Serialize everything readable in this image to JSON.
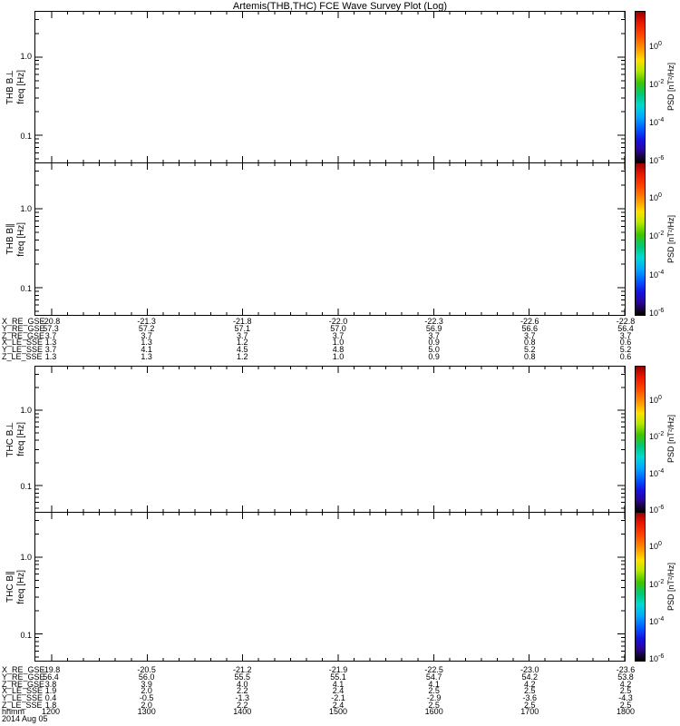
{
  "title": "Artemis(THB,THC) FCE Wave Survey Plot (Log)",
  "date_label": "2014 Aug 05",
  "time_axis": {
    "label": "hhmm",
    "ticks": [
      "1200",
      "1300",
      "1400",
      "1500",
      "1600",
      "1700",
      "1800"
    ]
  },
  "colorbar": {
    "label": "PSD [nT²/Hz]",
    "base": "10",
    "exponents": [
      "0",
      "-2",
      "-4",
      "-6"
    ]
  },
  "panels": [
    {
      "instrument": "THB B⊥",
      "axis": "freq [Hz]",
      "yticks": [
        "1.0",
        "0.1"
      ]
    },
    {
      "instrument": "THB B∥",
      "axis": "freq [Hz]",
      "yticks": [
        "1.0",
        "0.1"
      ]
    },
    {
      "instrument": "THC B⊥",
      "axis": "freq [Hz]",
      "yticks": [
        "1.0",
        "0.1"
      ]
    },
    {
      "instrument": "THC B∥",
      "axis": "freq [Hz]",
      "yticks": [
        "1.0",
        "0.1"
      ]
    }
  ],
  "ephemeris_blocks": [
    {
      "spacecraft": "THB",
      "rows": [
        {
          "label": "X_RE_GSE",
          "values": [
            "-20.8",
            "-21.3",
            "-21.8",
            "-22.0",
            "-22.3",
            "-22.6",
            "-22.8"
          ]
        },
        {
          "label": "Y_RE_GSE",
          "values": [
            "57.3",
            "57.2",
            "57.1",
            "57.0",
            "56.9",
            "56.6",
            "56.4"
          ]
        },
        {
          "label": "Z_RE_GSE",
          "values": [
            "3.7",
            "3.7",
            "3.7",
            "3.7",
            "3.7",
            "3.7",
            "3.7"
          ]
        },
        {
          "label": "X_LE_SSE",
          "values": [
            "1.3",
            "1.3",
            "1.2",
            "1.0",
            "0.9",
            "0.8",
            "0.6"
          ]
        },
        {
          "label": "Y_LE_SSE",
          "values": [
            "3.7",
            "4.1",
            "4.5",
            "4.8",
            "5.0",
            "5.2",
            "5.2"
          ]
        },
        {
          "label": "Z_LE_SSE",
          "values": [
            "1.3",
            "1.3",
            "1.2",
            "1.0",
            "0.9",
            "0.8",
            "0.6"
          ]
        }
      ]
    },
    {
      "spacecraft": "THC",
      "rows": [
        {
          "label": "X_RE_GSE",
          "values": [
            "-19.8",
            "-20.5",
            "-21.2",
            "-21.9",
            "-22.5",
            "-23.0",
            "-23.6"
          ]
        },
        {
          "label": "Y_RE_GSE",
          "values": [
            "56.4",
            "56.0",
            "55.5",
            "55.1",
            "54.7",
            "54.2",
            "53.8"
          ]
        },
        {
          "label": "Z_RE_GSE",
          "values": [
            "3.8",
            "3.9",
            "4.0",
            "4.1",
            "4.1",
            "4.2",
            "4.2"
          ]
        },
        {
          "label": "X_LE_SSE",
          "values": [
            "1.9",
            "2.0",
            "2.2",
            "2.4",
            "2.5",
            "2.5",
            "2.5"
          ]
        },
        {
          "label": "Y_LE_SSE",
          "values": [
            "0.4",
            "-0.5",
            "-1.3",
            "-2.1",
            "-2.9",
            "-3.6",
            "-4.3"
          ]
        },
        {
          "label": "Z_LE_SSE",
          "values": [
            "1.8",
            "2.0",
            "2.2",
            "2.4",
            "2.5",
            "2.5",
            "2.5"
          ]
        }
      ]
    }
  ],
  "chart_data": [
    {
      "type": "heatmap",
      "title": "THB B⊥",
      "ylabel": "freq [Hz]",
      "y_scale": "log",
      "y_tick_labels": [
        1.0,
        0.1
      ],
      "x_tick_labels": [
        "1200",
        "1300",
        "1400",
        "1500",
        "1600",
        "1700",
        "1800"
      ],
      "xlabel": "hhmm (2014 Aug 05)",
      "colorbar_label": "PSD [nT²/Hz]",
      "colorbar_ticks": [
        "10^0",
        "10^-2",
        "10^-4",
        "10^-6"
      ],
      "values": []
    },
    {
      "type": "heatmap",
      "title": "THB B∥",
      "ylabel": "freq [Hz]",
      "y_scale": "log",
      "y_tick_labels": [
        1.0,
        0.1
      ],
      "x_tick_labels": [
        "1200",
        "1300",
        "1400",
        "1500",
        "1600",
        "1700",
        "1800"
      ],
      "xlabel": "hhmm (2014 Aug 05)",
      "colorbar_label": "PSD [nT²/Hz]",
      "colorbar_ticks": [
        "10^0",
        "10^-2",
        "10^-4",
        "10^-6"
      ],
      "values": []
    },
    {
      "type": "heatmap",
      "title": "THC B⊥",
      "ylabel": "freq [Hz]",
      "y_scale": "log",
      "y_tick_labels": [
        1.0,
        0.1
      ],
      "x_tick_labels": [
        "1200",
        "1300",
        "1400",
        "1500",
        "1600",
        "1700",
        "1800"
      ],
      "xlabel": "hhmm (2014 Aug 05)",
      "colorbar_label": "PSD [nT²/Hz]",
      "colorbar_ticks": [
        "10^0",
        "10^-2",
        "10^-4",
        "10^-6"
      ],
      "values": []
    },
    {
      "type": "heatmap",
      "title": "THC B∥",
      "ylabel": "freq [Hz]",
      "y_scale": "log",
      "y_tick_labels": [
        1.0,
        0.1
      ],
      "x_tick_labels": [
        "1200",
        "1300",
        "1400",
        "1500",
        "1600",
        "1700",
        "1800"
      ],
      "xlabel": "hhmm (2014 Aug 05)",
      "colorbar_label": "PSD [nT²/Hz]",
      "colorbar_ticks": [
        "10^0",
        "10^-2",
        "10^-4",
        "10^-6"
      ],
      "values": []
    }
  ]
}
